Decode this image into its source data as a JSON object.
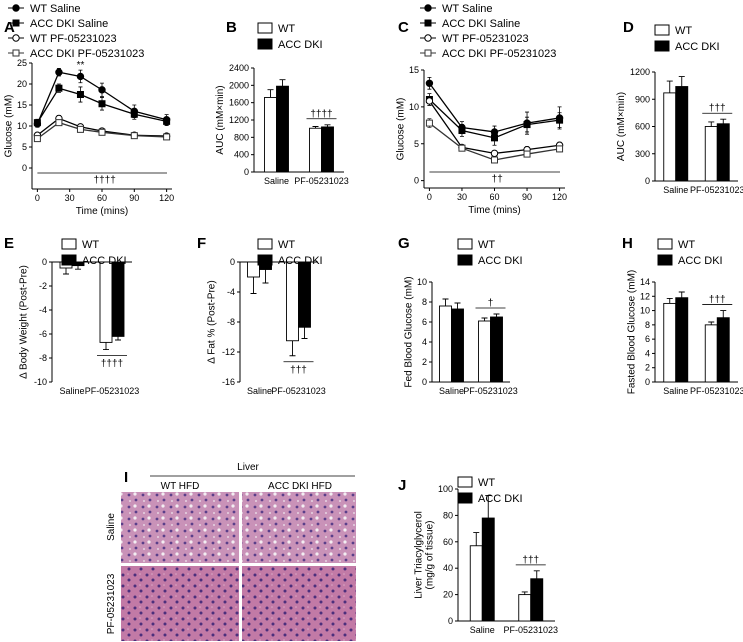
{
  "chart_data": [
    {
      "panel": "A",
      "type": "line",
      "ylabel": "Glucose (mM)",
      "xlabel": "Time (mins)",
      "x": [
        0,
        20,
        40,
        60,
        90,
        120
      ],
      "xlim": [
        -5,
        125
      ],
      "xticks": [
        0,
        30,
        60,
        90,
        120
      ],
      "ylim": [
        -5,
        25
      ],
      "yticks": [
        0,
        5,
        10,
        15,
        20,
        25
      ],
      "series": [
        {
          "name": "WT Saline",
          "color": "#000000",
          "marker": "circle",
          "marker_fill": "#000000",
          "values": [
            10.5,
            22.8,
            21.8,
            18.6,
            13.5,
            11.5
          ],
          "errors": [
            0.8,
            0.9,
            1.5,
            1.6,
            1.5,
            1.2
          ]
        },
        {
          "name": "ACC DKI Saline",
          "color": "#000000",
          "marker": "square",
          "marker_fill": "#000000",
          "values": [
            10.8,
            19,
            17.5,
            15.3,
            12.8,
            11.1
          ],
          "errors": [
            0.8,
            1,
            1.8,
            1.5,
            1.2,
            1.0
          ]
        },
        {
          "name": "WT PF-05231023",
          "color": "#000000",
          "marker": "circle",
          "marker_fill": "#ffffff",
          "values": [
            7.8,
            11.8,
            9.8,
            8.8,
            7.8,
            7.6
          ],
          "errors": [
            0.5,
            0.7,
            0.6,
            0.5,
            0.5,
            0.5
          ]
        },
        {
          "name": "ACC DKI PF-05231023",
          "color": "#333333",
          "marker": "square",
          "marker_fill": "#ffffff",
          "values": [
            7,
            10.8,
            9.2,
            8.5,
            7.7,
            7.4
          ],
          "errors": [
            0.5,
            0.5,
            0.5,
            0.4,
            0.4,
            0.4
          ]
        }
      ],
      "peak_annotation": "**",
      "annotation": "††††"
    },
    {
      "panel": "B",
      "type": "bar",
      "ylabel": "AUC (mM×min)",
      "categories": [
        "Saline",
        "PF-05231023"
      ],
      "ylim": [
        0,
        2400
      ],
      "yticks": [
        0,
        400,
        800,
        1200,
        1600,
        2000,
        2400
      ],
      "series": [
        {
          "name": "WT",
          "color": "#ffffff",
          "values": [
            1720,
            1010
          ],
          "errors": [
            180,
            40
          ]
        },
        {
          "name": "ACC DKI",
          "color": "#000000",
          "values": [
            1980,
            1040
          ],
          "errors": [
            150,
            50
          ]
        }
      ],
      "annotation": "††††"
    },
    {
      "panel": "C",
      "type": "line",
      "ylabel": "Glucose (mM)",
      "xlabel": "Time (mins)",
      "x": [
        0,
        30,
        60,
        90,
        120
      ],
      "xlim": [
        -5,
        125
      ],
      "xticks": [
        0,
        30,
        60,
        90,
        120
      ],
      "ylim": [
        -1,
        15
      ],
      "yticks": [
        0,
        5,
        10,
        15
      ],
      "series": [
        {
          "name": "WT Saline",
          "color": "#000000",
          "marker": "circle",
          "marker_fill": "#000000",
          "values": [
            13.2,
            7.2,
            6.6,
            7.8,
            8.5
          ],
          "errors": [
            0.8,
            0.8,
            0.8,
            1.5,
            1.5
          ]
        },
        {
          "name": "ACC DKI Saline",
          "color": "#000000",
          "marker": "square",
          "marker_fill": "#000000",
          "values": [
            11,
            6.8,
            5.8,
            7.6,
            8.2
          ],
          "errors": [
            0.8,
            0.8,
            1,
            1,
            1
          ]
        },
        {
          "name": "WT PF-05231023",
          "color": "#000000",
          "marker": "circle",
          "marker_fill": "#ffffff",
          "values": [
            10.8,
            4.5,
            3.7,
            4.2,
            4.8
          ],
          "errors": [
            0.6,
            0.3,
            0.4,
            0.4,
            0.4
          ]
        },
        {
          "name": "ACC DKI PF-05231023",
          "color": "#333333",
          "marker": "square",
          "marker_fill": "#ffffff",
          "values": [
            7.8,
            4.4,
            2.8,
            3.6,
            4.3
          ],
          "errors": [
            0.6,
            0.3,
            0.3,
            0.4,
            0.4
          ]
        }
      ],
      "annotation": "††"
    },
    {
      "panel": "D",
      "type": "bar",
      "ylabel": "AUC (mM×min)",
      "categories": [
        "Saline",
        "PF-05231023"
      ],
      "ylim": [
        0,
        1200
      ],
      "yticks": [
        0,
        300,
        600,
        900,
        1200
      ],
      "series": [
        {
          "name": "WT",
          "color": "#ffffff",
          "values": [
            970,
            600
          ],
          "errors": [
            130,
            50
          ]
        },
        {
          "name": "ACC DKI",
          "color": "#000000",
          "values": [
            1040,
            630
          ],
          "errors": [
            110,
            50
          ]
        }
      ],
      "annotation": "†††"
    },
    {
      "panel": "E",
      "type": "bar",
      "ylabel": "Δ Body Weight (Post-Pre)",
      "categories": [
        "Saline",
        "PF-05231023"
      ],
      "ylim": [
        -10,
        0
      ],
      "yticks": [
        0,
        -2,
        -4,
        -6,
        -8,
        -10
      ],
      "series": [
        {
          "name": "WT",
          "color": "#ffffff",
          "values": [
            -0.5,
            -6.7
          ],
          "errors": [
            0.5,
            0.6
          ]
        },
        {
          "name": "ACC DKI",
          "color": "#000000",
          "values": [
            -0.3,
            -6.2
          ],
          "errors": [
            0.3,
            0.3
          ]
        }
      ],
      "annotation": "††††"
    },
    {
      "panel": "F",
      "type": "bar",
      "ylabel": "Δ Fat % (Post-Pre)",
      "categories": [
        "Saline",
        "PF-05231023"
      ],
      "ylim": [
        -16,
        0
      ],
      "yticks": [
        0,
        -4,
        -8,
        -12,
        -16
      ],
      "series": [
        {
          "name": "WT",
          "color": "#ffffff",
          "values": [
            -2,
            -10.5
          ],
          "errors": [
            2.2,
            2
          ]
        },
        {
          "name": "ACC DKI",
          "color": "#000000",
          "values": [
            -1,
            -8.7
          ],
          "errors": [
            1.8,
            1.5
          ]
        }
      ],
      "annotation": "†††"
    },
    {
      "panel": "G",
      "type": "bar",
      "ylabel": "Fed Blood Glucose (mM)",
      "categories": [
        "Saline",
        "PF-05231023"
      ],
      "ylim": [
        0,
        10
      ],
      "yticks": [
        0,
        2,
        4,
        6,
        8,
        10
      ],
      "series": [
        {
          "name": "WT",
          "color": "#ffffff",
          "values": [
            7.6,
            6.1
          ],
          "errors": [
            0.7,
            0.3
          ]
        },
        {
          "name": "ACC DKI",
          "color": "#000000",
          "values": [
            7.3,
            6.5
          ],
          "errors": [
            0.6,
            0.3
          ]
        }
      ],
      "annotation": "†"
    },
    {
      "panel": "H",
      "type": "bar",
      "ylabel": "Fasted Blood Glucose (mM)",
      "categories": [
        "Saline",
        "PF-05231023"
      ],
      "ylim": [
        0,
        14
      ],
      "yticks": [
        0,
        2,
        4,
        6,
        8,
        10,
        12,
        14
      ],
      "series": [
        {
          "name": "WT",
          "color": "#ffffff",
          "values": [
            11,
            8
          ],
          "errors": [
            0.7,
            0.4
          ]
        },
        {
          "name": "ACC DKI",
          "color": "#000000",
          "values": [
            11.8,
            9
          ],
          "errors": [
            0.8,
            1
          ]
        }
      ],
      "annotation": "†††"
    },
    {
      "panel": "J",
      "type": "bar",
      "ylabel": [
        "Liver Triacylglycerol",
        "(mg/g of tissue)"
      ],
      "categories": [
        "Saline",
        "PF-05231023"
      ],
      "ylim": [
        0,
        100
      ],
      "yticks": [
        0,
        20,
        40,
        60,
        80,
        100
      ],
      "series": [
        {
          "name": "WT",
          "color": "#ffffff",
          "values": [
            57,
            20
          ],
          "errors": [
            10,
            2
          ]
        },
        {
          "name": "ACC DKI",
          "color": "#000000",
          "values": [
            78,
            32
          ],
          "errors": [
            17,
            6
          ]
        }
      ],
      "annotation": "†††"
    }
  ],
  "histology": {
    "panel": "I",
    "tissue": "Liver",
    "columns": [
      "WT HFD",
      "ACC DKI HFD"
    ],
    "rows": [
      "Saline",
      "PF-05231023"
    ]
  }
}
